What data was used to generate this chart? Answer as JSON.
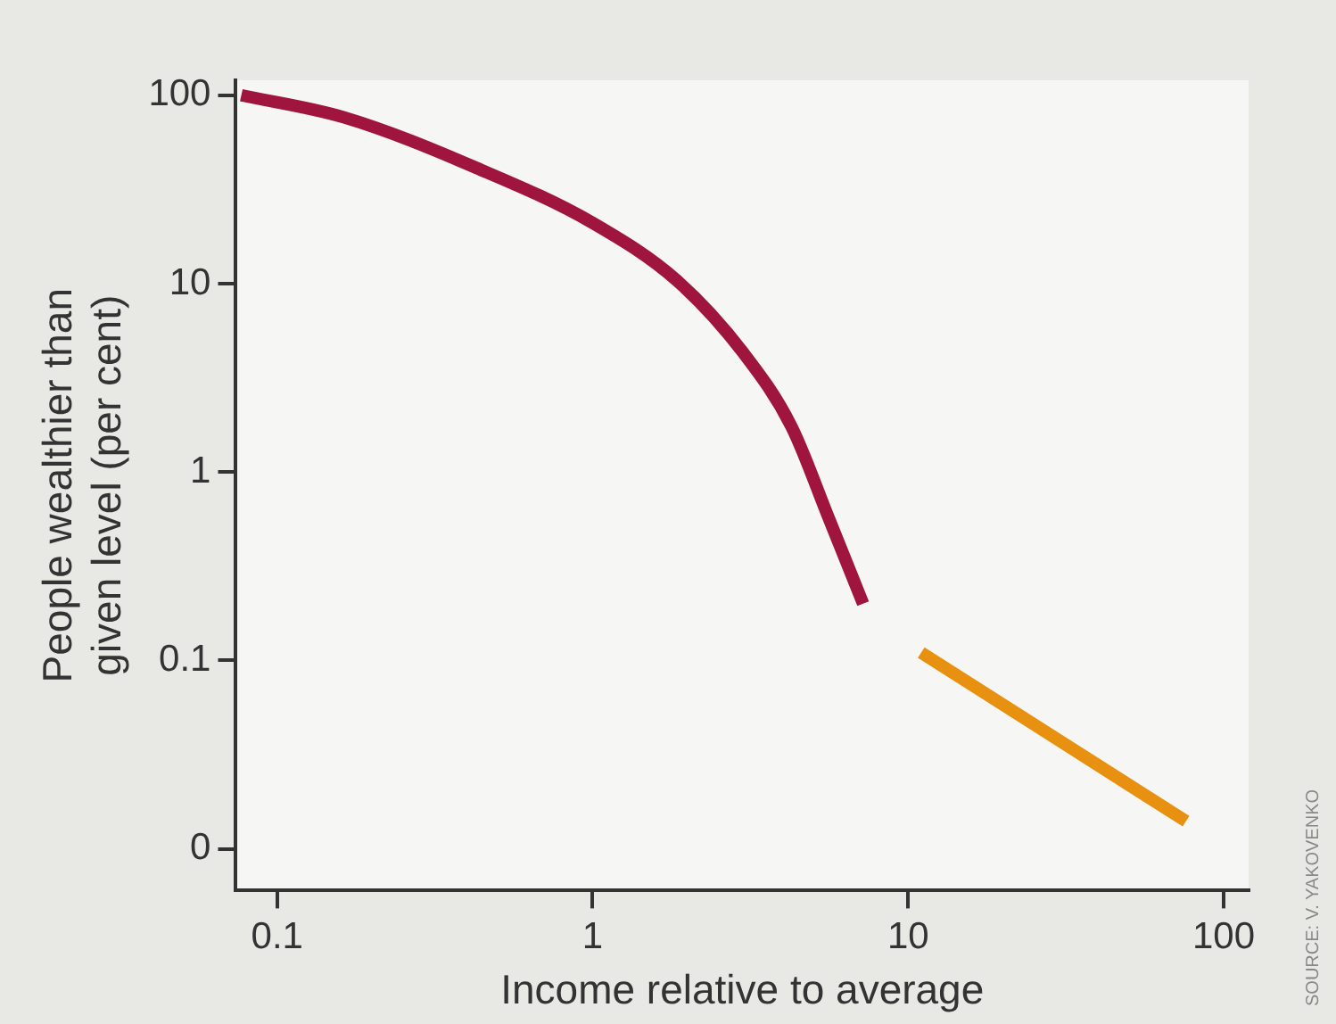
{
  "chart_data": {
    "type": "line",
    "xlabel": "Income relative to average",
    "ylabel": "People wealthier than\ngiven level (per cent)",
    "log": "xy",
    "grid": false,
    "legend": false,
    "marker": "none",
    "line_style": "solid",
    "xlim": [
      0.074,
      120
    ],
    "xticks": [
      0.1,
      1,
      10,
      100
    ],
    "ylim": [
      0.006,
      120
    ],
    "yticks": [
      100,
      10,
      1,
      0.1,
      {
        "value": 0.01,
        "label": "0"
      }
    ],
    "series": [
      {
        "color": "#a0153e",
        "x": [
          0.077,
          0.164,
          0.43,
          1.0,
          1.86,
          3.0,
          4.27,
          5.6,
          7.2
        ],
        "values": [
          100,
          76,
          41,
          21,
          10.3,
          4.3,
          1.74,
          0.57,
          0.2
        ]
      },
      {
        "color": "#e8900f",
        "x": [
          11,
          76
        ],
        "values": [
          0.11,
          0.014
        ]
      }
    ],
    "annotations": [
      "SOURCE: V. YAKOVENKO"
    ]
  }
}
